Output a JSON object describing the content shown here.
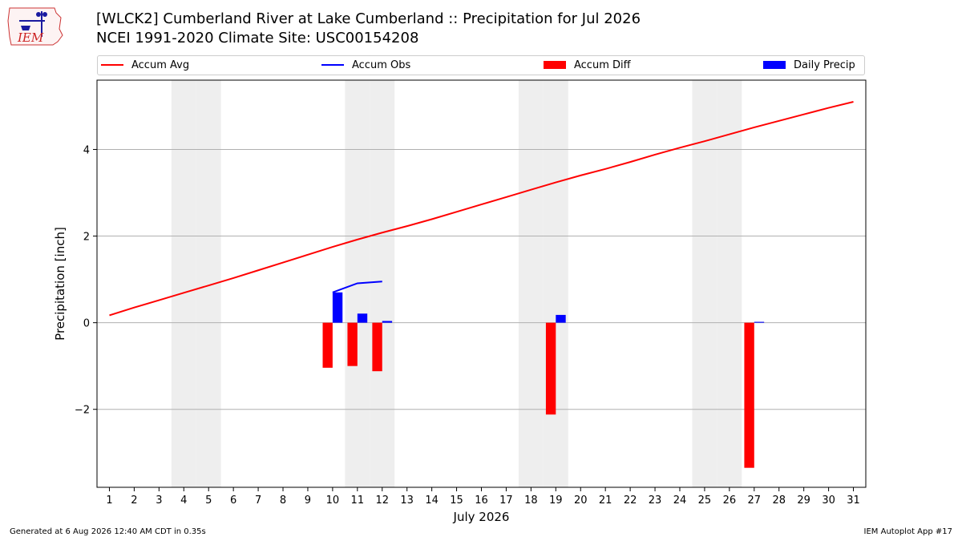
{
  "header": {
    "title_line1": "[WLCK2] Cumberland River at Lake Cumberland :: Precipitation for Jul 2026",
    "title_line2": "NCEI 1991-2020 Climate Site: USC00154208",
    "logo_text": "IEM"
  },
  "legend": {
    "items": [
      {
        "label": "Accum Avg",
        "color": "#ff0000",
        "kind": "line"
      },
      {
        "label": "Accum Obs",
        "color": "#0000ff",
        "kind": "line"
      },
      {
        "label": "Accum Diff",
        "color": "#ff0000",
        "kind": "bar"
      },
      {
        "label": "Daily Precip",
        "color": "#0000ff",
        "kind": "bar"
      }
    ]
  },
  "footer": {
    "generated": "Generated at 6 Aug 2026 12:40 AM CDT in 0.35s",
    "app": "IEM Autoplot App #17"
  },
  "chart_data": {
    "type": "bar",
    "xlabel": "July 2026",
    "ylabel": "Precipitation [inch]",
    "xlim": [
      0.5,
      31.5
    ],
    "ylim": [
      -3.8,
      5.6
    ],
    "yticks": [
      -2,
      0,
      2,
      4
    ],
    "ytick_labels": [
      "−2",
      "0",
      "2",
      "4"
    ],
    "days": [
      1,
      2,
      3,
      4,
      5,
      6,
      7,
      8,
      9,
      10,
      11,
      12,
      13,
      14,
      15,
      16,
      17,
      18,
      19,
      20,
      21,
      22,
      23,
      24,
      25,
      26,
      27,
      28,
      29,
      30,
      31
    ],
    "weekend_days": [
      4,
      5,
      11,
      12,
      18,
      19,
      25,
      26
    ],
    "grid": "horizontal",
    "legend_position": "top",
    "series": [
      {
        "name": "Accum Avg",
        "kind": "line",
        "color": "#ff0000",
        "values": [
          0.17,
          0.35,
          0.52,
          0.69,
          0.86,
          1.03,
          1.21,
          1.39,
          1.57,
          1.75,
          1.92,
          2.08,
          2.23,
          2.39,
          2.56,
          2.73,
          2.9,
          3.07,
          3.24,
          3.4,
          3.55,
          3.71,
          3.88,
          4.04,
          4.19,
          4.35,
          4.51,
          4.66,
          4.81,
          4.96,
          5.1
        ]
      },
      {
        "name": "Accum Obs",
        "kind": "line",
        "color": "#0000ff",
        "x": [
          10,
          11,
          12
        ],
        "values": [
          0.7,
          0.91,
          0.95
        ]
      },
      {
        "name": "Accum Diff",
        "kind": "bar",
        "color": "#ff0000",
        "x": [
          10,
          11,
          12,
          19,
          27
        ],
        "values": [
          -1.04,
          -1.0,
          -1.12,
          -2.12,
          -3.35
        ]
      },
      {
        "name": "Daily Precip",
        "kind": "bar",
        "color": "#0000ff",
        "x": [
          10,
          11,
          12,
          19,
          27
        ],
        "values": [
          0.7,
          0.21,
          0.04,
          0.18,
          0.02
        ]
      }
    ]
  }
}
